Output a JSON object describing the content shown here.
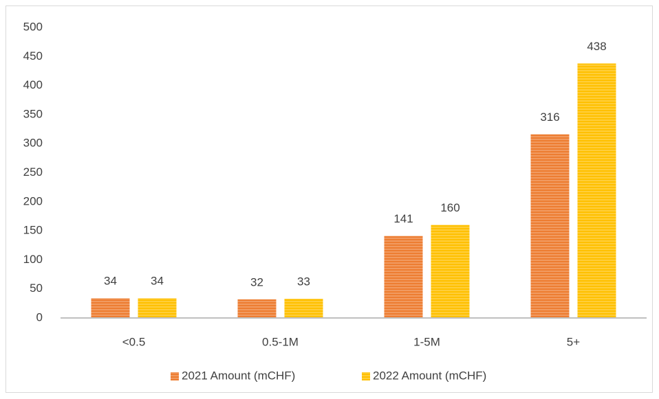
{
  "chart_data": {
    "type": "bar",
    "categories": [
      "<0.5",
      "0.5-1M",
      "1-5M",
      "5+"
    ],
    "series": [
      {
        "name": "2021 Amount (mCHF)",
        "color": "#ED7D31",
        "values": [
          34,
          32,
          141,
          316
        ]
      },
      {
        "name": "2022 Amount (mCHF)",
        "color": "#FFC000",
        "values": [
          34,
          33,
          160,
          438
        ]
      }
    ],
    "ylim": [
      0,
      500
    ],
    "yticks": [
      0,
      50,
      100,
      150,
      200,
      250,
      300,
      350,
      400,
      450,
      500
    ],
    "grid": false,
    "legend": "bottom"
  }
}
